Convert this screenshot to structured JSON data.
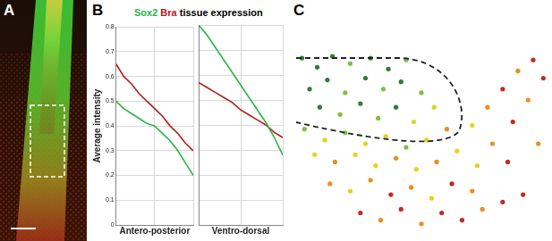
{
  "panel_labels": [
    "A",
    "B",
    "C"
  ],
  "chart_data": [
    {
      "type": "line",
      "title": "Sox2 Bra tissue expression",
      "x_label": "Antero-posterior",
      "y_label": "Average intensity",
      "x": [
        0,
        1,
        2,
        3,
        4,
        5,
        6,
        7,
        8,
        9,
        10
      ],
      "xlim": [
        0,
        10
      ],
      "ylim": [
        0,
        0.8
      ],
      "yticks": [
        0,
        0.1,
        0.2,
        0.3,
        0.4,
        0.5,
        0.6,
        0.7,
        0.8
      ],
      "grid": true,
      "tick_labels": "y",
      "series": [
        {
          "name": "Sox2",
          "color": "#2db34a",
          "values": [
            0.5,
            0.47,
            0.45,
            0.43,
            0.41,
            0.4,
            0.37,
            0.34,
            0.3,
            0.25,
            0.2
          ]
        },
        {
          "name": "Bra",
          "color": "#b0201a",
          "values": [
            0.65,
            0.6,
            0.57,
            0.53,
            0.5,
            0.47,
            0.44,
            0.4,
            0.37,
            0.33,
            0.3
          ]
        }
      ]
    },
    {
      "type": "line",
      "x_label": "Ventro-dorsal",
      "x": [
        0,
        1,
        2,
        3,
        4,
        5,
        6,
        7,
        8,
        9,
        10
      ],
      "xlim": [
        0,
        10
      ],
      "ylim": [
        0,
        0.8
      ],
      "grid": true,
      "tick_labels": false,
      "series": [
        {
          "name": "Sox2",
          "color": "#2db34a",
          "values": [
            0.8,
            0.76,
            0.71,
            0.66,
            0.61,
            0.56,
            0.51,
            0.46,
            0.41,
            0.35,
            0.28
          ]
        },
        {
          "name": "Bra",
          "color": "#b0201a",
          "values": [
            0.57,
            0.55,
            0.53,
            0.51,
            0.49,
            0.46,
            0.44,
            0.42,
            0.4,
            0.37,
            0.35
          ]
        }
      ]
    },
    {
      "type": "scatter",
      "xlim": [
        0,
        100
      ],
      "ylim": [
        0,
        100
      ],
      "grid": false,
      "tick_labels": false,
      "x": [
        3,
        9,
        15,
        22,
        30,
        37,
        44,
        6,
        13,
        20,
        28,
        35,
        42,
        50,
        55,
        10,
        18,
        26,
        33,
        40,
        47,
        4,
        12,
        20,
        28,
        36,
        44,
        52,
        60,
        8,
        16,
        24,
        32,
        40,
        48,
        56,
        64,
        14,
        22,
        30,
        38,
        46,
        54,
        62,
        70,
        26,
        34,
        42,
        50,
        58,
        66,
        74,
        82,
        90,
        70,
        76,
        82,
        88,
        94,
        78,
        86,
        92,
        98,
        84,
        96,
        72
      ],
      "values": [
        97,
        92,
        98,
        94,
        97,
        91,
        96,
        80,
        85,
        78,
        86,
        80,
        84,
        78,
        70,
        70,
        66,
        72,
        64,
        70,
        62,
        58,
        52,
        56,
        50,
        54,
        48,
        52,
        58,
        44,
        40,
        44,
        38,
        42,
        36,
        40,
        46,
        28,
        24,
        30,
        22,
        26,
        20,
        28,
        24,
        12,
        8,
        14,
        6,
        12,
        8,
        14,
        18,
        22,
        60,
        70,
        80,
        90,
        96,
        50,
        62,
        74,
        86,
        40,
        50,
        38
      ],
      "colors": [
        "#2f7d32",
        "#2f7d32",
        "#2f7d32",
        "#7cc242",
        "#2f7d32",
        "#2f7d32",
        "#7cc242",
        "#2f7d32",
        "#2f7d32",
        "#7cc242",
        "#2f7d32",
        "#7cc242",
        "#2f7d32",
        "#7cc242",
        "#e5d21f",
        "#2f7d32",
        "#7cc242",
        "#2f7d32",
        "#7cc242",
        "#2f7d32",
        "#e5d21f",
        "#7cc242",
        "#e5d21f",
        "#7cc242",
        "#e5d21f",
        "#e5d21f",
        "#7cc242",
        "#e5d21f",
        "#f08c1e",
        "#e5d21f",
        "#f08c1e",
        "#e5d21f",
        "#e5d21f",
        "#f08c1e",
        "#e5d21f",
        "#f08c1e",
        "#e5d21f",
        "#f08c1e",
        "#e5d21f",
        "#f08c1e",
        "#c62a1f",
        "#f08c1e",
        "#e5d21f",
        "#c62a1f",
        "#f08c1e",
        "#c62a1f",
        "#f08c1e",
        "#c62a1f",
        "#f08c1e",
        "#c62a1f",
        "#c62a1f",
        "#f08c1e",
        "#c62a1f",
        "#c62a1f",
        "#e5d21f",
        "#f08c1e",
        "#c62a1f",
        "#f08c1e",
        "#c62a1f",
        "#f08c1e",
        "#c62a1f",
        "#f08c1e",
        "#c62a1f",
        "#c62a1f",
        "#f08c1e",
        "#e5d21f"
      ]
    }
  ]
}
